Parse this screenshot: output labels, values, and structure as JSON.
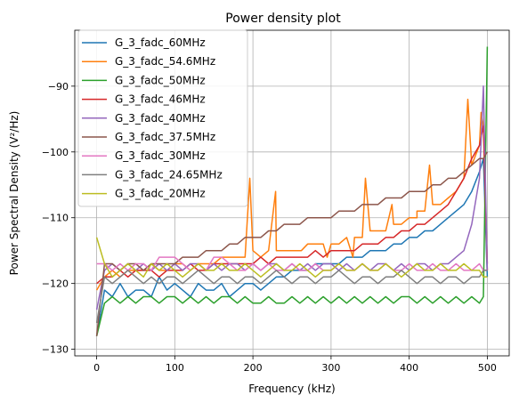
{
  "chart_data": {
    "type": "line",
    "title": "Power density plot",
    "xlabel": "Frequency (kHz)",
    "ylabel": "Power Spectral Density (V²/Hz)",
    "xlim": [
      -28,
      528
    ],
    "ylim": [
      -131,
      -81.5
    ],
    "xticks": [
      0,
      100,
      200,
      300,
      400,
      500
    ],
    "yticks": [
      -130,
      -120,
      -110,
      -100,
      -90
    ],
    "grid": true,
    "legend_position": "upper-left",
    "x": [
      0,
      10,
      20,
      30,
      40,
      50,
      60,
      70,
      80,
      90,
      100,
      110,
      120,
      130,
      140,
      150,
      160,
      170,
      180,
      190,
      200,
      210,
      220,
      230,
      240,
      250,
      260,
      270,
      280,
      290,
      300,
      310,
      320,
      330,
      340,
      350,
      360,
      370,
      380,
      390,
      400,
      410,
      420,
      430,
      440,
      450,
      460,
      470,
      480,
      490,
      495,
      500
    ],
    "series": [
      {
        "name": "G_3_fadc_60MHz",
        "color": "#1f77b4",
        "values": [
          -128,
          -121,
          -122,
          -120,
          -122,
          -121,
          -121,
          -122,
          -119,
          -121,
          -120,
          -121,
          -122,
          -120,
          -121,
          -121,
          -120,
          -122,
          -121,
          -120,
          -120,
          -121,
          -120,
          -119,
          -119,
          -118,
          -118,
          -118,
          -117,
          -117,
          -117,
          -117,
          -116,
          -116,
          -116,
          -115,
          -115,
          -115,
          -114,
          -114,
          -113,
          -113,
          -112,
          -112,
          -111,
          -110,
          -109,
          -108,
          -106,
          -103,
          -101,
          -119
        ]
      },
      {
        "name": "G_3_fadc_54.6MHz",
        "color": "#ff7f0e",
        "values": [
          -121,
          -119,
          -118,
          -119,
          -118,
          -118,
          -118,
          -117,
          -118,
          -118,
          -117,
          -117,
          -118,
          -117,
          -117,
          -117,
          -116,
          -116,
          -116,
          -116,
          -115,
          -116,
          -115,
          -115,
          -115,
          -115,
          -115,
          -114,
          -114,
          -114,
          -114,
          -114,
          -113,
          -113,
          -113,
          -112,
          -112,
          -112,
          -111,
          -111,
          -110,
          -110,
          -109,
          -108,
          -108,
          -107,
          -106,
          -104,
          -102,
          -99,
          -96,
          -118
        ]
      },
      {
        "name": "G_3_fadc_50MHz",
        "color": "#2ca02c",
        "values": [
          -128,
          -123,
          -122,
          -123,
          -122,
          -123,
          -122,
          -122,
          -123,
          -122,
          -122,
          -123,
          -122,
          -123,
          -122,
          -123,
          -122,
          -122,
          -123,
          -122,
          -123,
          -123,
          -122,
          -123,
          -123,
          -122,
          -123,
          -122,
          -123,
          -122,
          -123,
          -122,
          -123,
          -122,
          -123,
          -122,
          -123,
          -122,
          -123,
          -122,
          -122,
          -123,
          -122,
          -123,
          -122,
          -123,
          -122,
          -123,
          -122,
          -123,
          -122,
          -84
        ]
      },
      {
        "name": "G_3_fadc_46MHz",
        "color": "#d62728",
        "values": [
          -120,
          -119,
          -119,
          -118,
          -119,
          -118,
          -118,
          -118,
          -119,
          -118,
          -118,
          -118,
          -117,
          -118,
          -118,
          -117,
          -117,
          -117,
          -117,
          -117,
          -117,
          -116,
          -117,
          -116,
          -116,
          -116,
          -116,
          -116,
          -115,
          -116,
          -115,
          -115,
          -115,
          -115,
          -114,
          -114,
          -114,
          -113,
          -113,
          -112,
          -112,
          -111,
          -111,
          -110,
          -109,
          -108,
          -106,
          -104,
          -101,
          -99,
          -96,
          -117
        ]
      },
      {
        "name": "G_3_fadc_40MHz",
        "color": "#9467bd",
        "values": [
          -124,
          -118,
          -117,
          -118,
          -117,
          -118,
          -117,
          -118,
          -117,
          -118,
          -117,
          -118,
          -117,
          -117,
          -118,
          -117,
          -118,
          -117,
          -117,
          -118,
          -117,
          -118,
          -117,
          -117,
          -118,
          -117,
          -118,
          -117,
          -118,
          -117,
          -117,
          -118,
          -117,
          -118,
          -117,
          -118,
          -117,
          -117,
          -118,
          -117,
          -118,
          -117,
          -117,
          -118,
          -117,
          -117,
          -116,
          -115,
          -111,
          -104,
          -90,
          -118
        ]
      },
      {
        "name": "G_3_fadc_37.5MHz",
        "color": "#8c564b",
        "values": [
          -128,
          -117,
          -117,
          -118,
          -117,
          -117,
          -118,
          -117,
          -117,
          -117,
          -117,
          -116,
          -116,
          -116,
          -115,
          -115,
          -115,
          -114,
          -114,
          -113,
          -113,
          -113,
          -112,
          -112,
          -111,
          -111,
          -111,
          -110,
          -110,
          -110,
          -110,
          -109,
          -109,
          -109,
          -108,
          -108,
          -108,
          -107,
          -107,
          -107,
          -106,
          -106,
          -106,
          -105,
          -105,
          -104,
          -104,
          -103,
          -102,
          -101,
          -101,
          -100
        ]
      },
      {
        "name": "G_3_fadc_30MHz",
        "color": "#e377c2",
        "values": [
          -117,
          -117,
          -118,
          -117,
          -118,
          -117,
          -117,
          -118,
          -116,
          -116,
          -116,
          -117,
          -118,
          -117,
          -118,
          -116,
          -116,
          -117,
          -118,
          -118,
          -117,
          -118,
          -117,
          -118,
          -118,
          -117,
          -118,
          -118,
          -117,
          -118,
          -118,
          -117,
          -118,
          -118,
          -117,
          -118,
          -118,
          -117,
          -118,
          -118,
          -117,
          -118,
          -118,
          -117,
          -118,
          -118,
          -117,
          -118,
          -118,
          -117,
          -118,
          -118
        ]
      },
      {
        "name": "G_3_fadc_24.65MHz",
        "color": "#7f7f7f",
        "values": [
          -126,
          -119,
          -120,
          -119,
          -118,
          -119,
          -120,
          -119,
          -120,
          -119,
          -119,
          -120,
          -119,
          -118,
          -119,
          -120,
          -119,
          -119,
          -120,
          -119,
          -119,
          -120,
          -119,
          -118,
          -119,
          -120,
          -119,
          -119,
          -120,
          -119,
          -119,
          -118,
          -119,
          -120,
          -119,
          -119,
          -120,
          -119,
          -119,
          -118,
          -119,
          -120,
          -119,
          -119,
          -120,
          -119,
          -119,
          -120,
          -119,
          -119,
          -118,
          -118
        ]
      },
      {
        "name": "G_3_fadc_20MHz",
        "color": "#bcbd22",
        "values": [
          -113,
          -117,
          -119,
          -118,
          -117,
          -118,
          -119,
          -117,
          -118,
          -117,
          -118,
          -119,
          -118,
          -117,
          -118,
          -118,
          -117,
          -118,
          -118,
          -117,
          -118,
          -119,
          -118,
          -117,
          -118,
          -118,
          -117,
          -118,
          -119,
          -118,
          -118,
          -117,
          -118,
          -118,
          -117,
          -118,
          -118,
          -117,
          -118,
          -119,
          -118,
          -117,
          -118,
          -118,
          -117,
          -118,
          -118,
          -117,
          -118,
          -118,
          -119,
          -119
        ]
      }
    ],
    "spikes": {
      "series": "G_3_fadc_54.6MHz",
      "x": [
        178,
        196,
        229,
        262,
        295,
        328,
        344,
        378,
        410,
        426,
        475,
        492
      ],
      "y": [
        -116,
        -104,
        -106,
        -115,
        -116,
        -116,
        -104,
        -108,
        -109,
        -102,
        -92,
        -94
      ]
    }
  }
}
